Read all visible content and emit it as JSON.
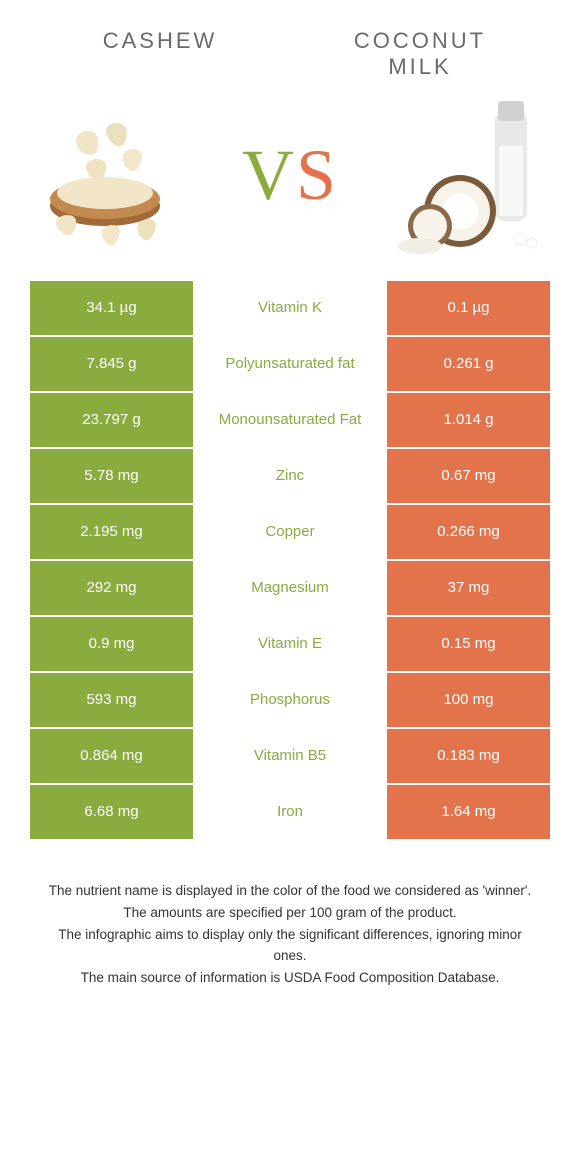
{
  "colors": {
    "left": "#8aab3e",
    "right": "#e2734a",
    "mid_text_winner_left": "#8aab3e",
    "mid_text_winner_right": "#e2734a",
    "header_text": "#6a6a6a",
    "body_bg": "#ffffff",
    "cell_text": "#ffffff"
  },
  "header": {
    "left_title": "CASHEW",
    "right_title": "COCONUT MILK",
    "vs_v": "V",
    "vs_s": "S"
  },
  "rows": [
    {
      "nutrient": "Vitamin K",
      "left": "34.1 µg",
      "right": "0.1 µg",
      "winner": "left"
    },
    {
      "nutrient": "Polyunsaturated fat",
      "left": "7.845 g",
      "right": "0.261 g",
      "winner": "left"
    },
    {
      "nutrient": "Monounsaturated Fat",
      "left": "23.797 g",
      "right": "1.014 g",
      "winner": "left"
    },
    {
      "nutrient": "Zinc",
      "left": "5.78 mg",
      "right": "0.67 mg",
      "winner": "left"
    },
    {
      "nutrient": "Copper",
      "left": "2.195 mg",
      "right": "0.266 mg",
      "winner": "left"
    },
    {
      "nutrient": "Magnesium",
      "left": "292 mg",
      "right": "37 mg",
      "winner": "left"
    },
    {
      "nutrient": "Vitamin E",
      "left": "0.9 mg",
      "right": "0.15 mg",
      "winner": "left"
    },
    {
      "nutrient": "Phosphorus",
      "left": "593 mg",
      "right": "100 mg",
      "winner": "left"
    },
    {
      "nutrient": "Vitamin B5",
      "left": "0.864 mg",
      "right": "0.183 mg",
      "winner": "left"
    },
    {
      "nutrient": "Iron",
      "left": "6.68 mg",
      "right": "1.64 mg",
      "winner": "left"
    }
  ],
  "footer": {
    "line1": "The nutrient name is displayed in the color of the food we considered as 'winner'.",
    "line2": "The amounts are specified per 100 gram of the product.",
    "line3": "The infographic aims to display only the significant differences, ignoring minor ones.",
    "line4": "The main source of information is USDA Food Composition Database."
  }
}
